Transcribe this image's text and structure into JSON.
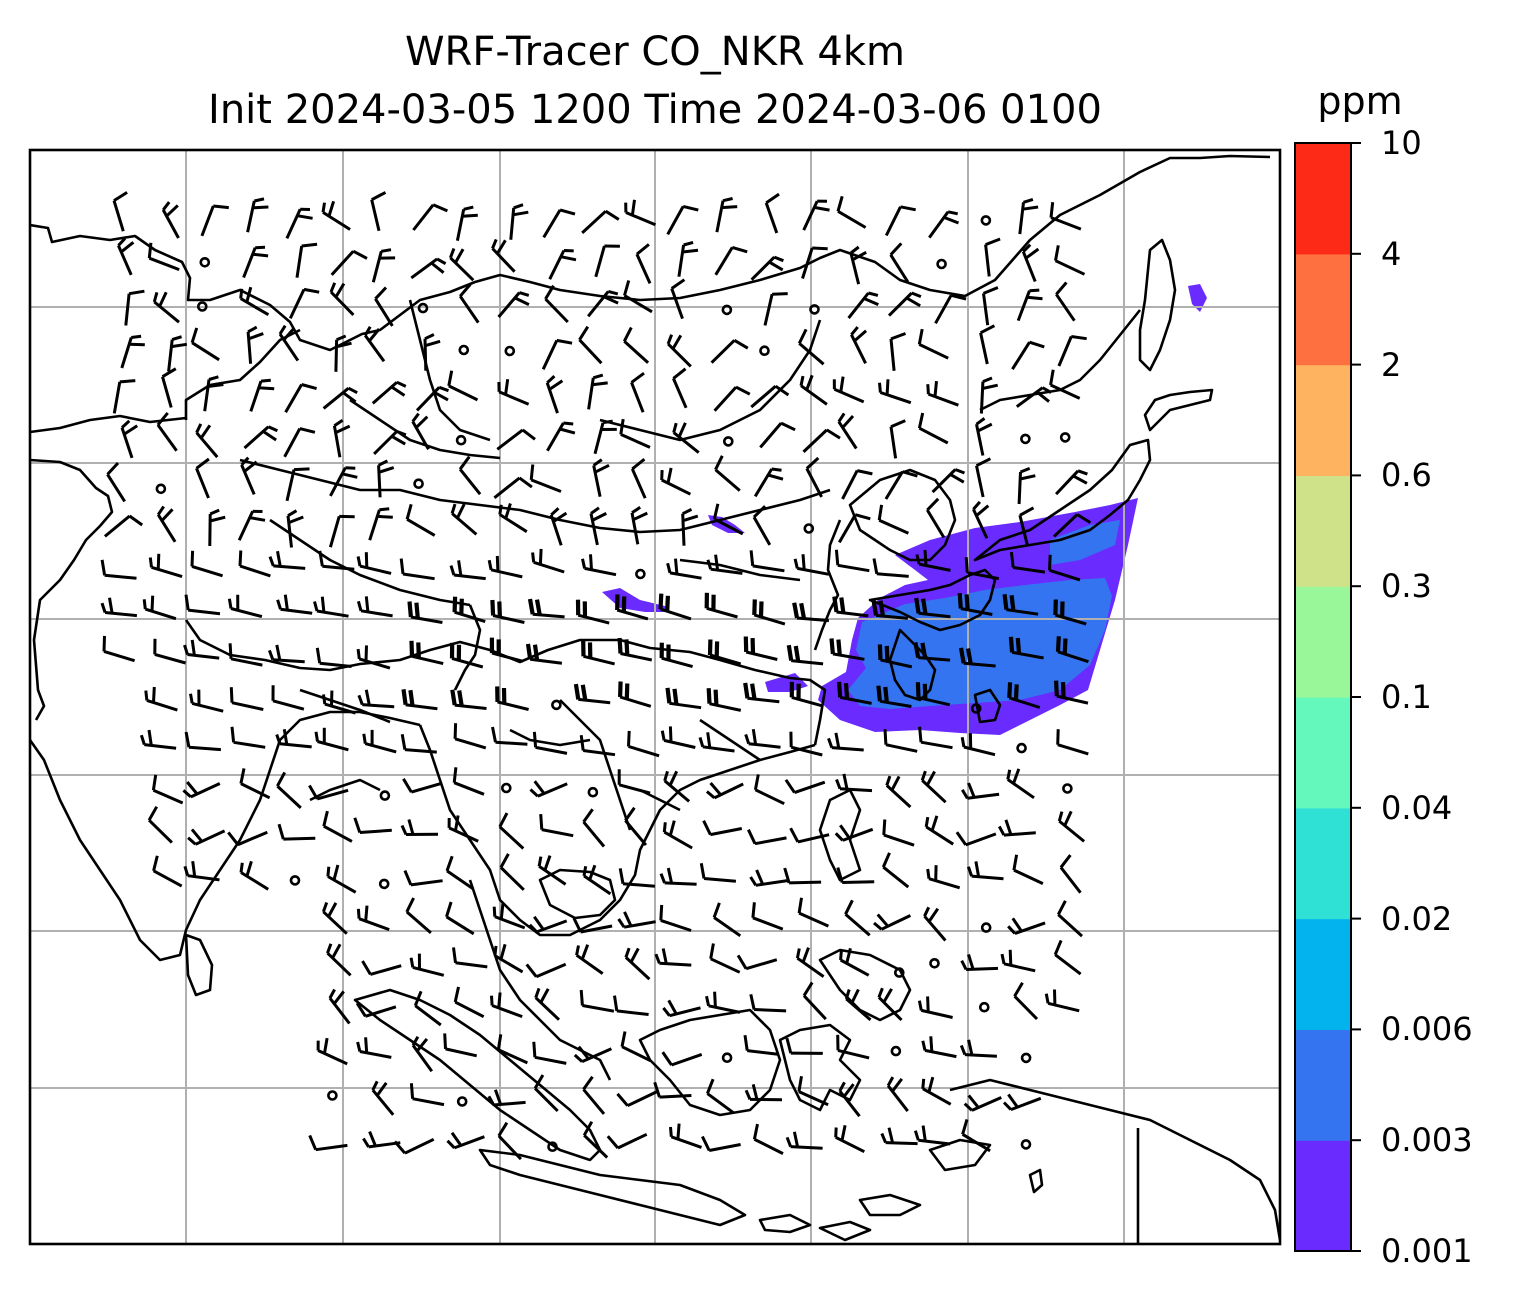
{
  "title": {
    "line1": "WRF-Tracer CO_NKR 4km",
    "line2": "Init 2024-03-05 1200 Time 2024-03-06 0100"
  },
  "colorbar": {
    "unit": "ppm",
    "ticks": [
      "0.001",
      "0.003",
      "0.006",
      "0.02",
      "0.04",
      "0.1",
      "0.3",
      "0.6",
      "2",
      "4",
      "10"
    ],
    "colors": [
      "#6a2bff",
      "#3474f0",
      "#02b3ee",
      "#2fe0d4",
      "#64f8bd",
      "#99f79a",
      "#cfe289",
      "#fdb35f",
      "#ff7040",
      "#fe2a18"
    ]
  },
  "map": {
    "tracer_fill_colors": [
      "#6a2bff",
      "#3474f0"
    ],
    "grid_color": "#b0b0b0",
    "coastline_color": "#000000",
    "barb_color": "#000000"
  }
}
